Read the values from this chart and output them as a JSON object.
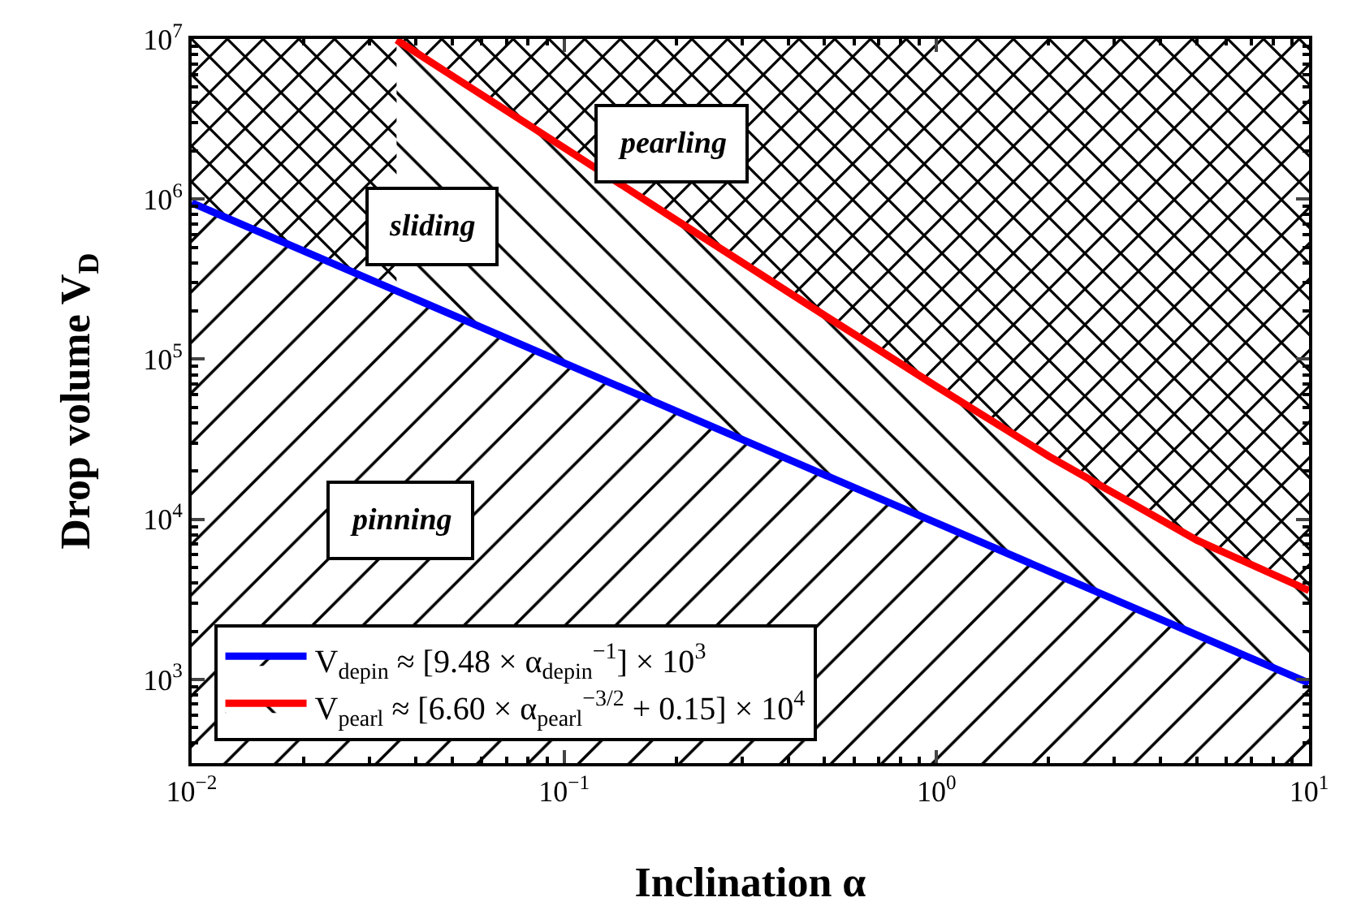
{
  "chart_data": {
    "xlabel": "Inclination α",
    "ylabel": "Drop volume V$_{D}$",
    "log": "xy",
    "grid": false,
    "legend": "bottom left",
    "marker": "none",
    "line_style": "solid",
    "xlim": [
      0.01,
      10
    ],
    "ylim": [
      300,
      10000000
    ],
    "xticks": [
      {
        "value": 0.01,
        "label": "10$^{−2}$"
      },
      {
        "value": 0.1,
        "label": "10$^{−1}$"
      },
      {
        "value": 1,
        "label": "10$^{0}$"
      },
      {
        "value": 10,
        "label": "10$^{1}$"
      }
    ],
    "yticks": [
      {
        "value": 1000,
        "label": "10$^{3}$"
      },
      {
        "value": 10000,
        "label": "10$^{4}$"
      },
      {
        "value": 100000,
        "label": "10$^{5}$"
      },
      {
        "value": 1000000,
        "label": "10$^{6}$"
      },
      {
        "value": 10000000,
        "label": "10$^{7}$"
      }
    ],
    "type": "area",
    "series": [
      {
        "name": "V$_{depin}$ ≈ [9.48 × α$_{depin}$$^{−1}$] × 10$^{3}$",
        "color": "#0000ff",
        "x": [
          0.01,
          0.1,
          1,
          10
        ],
        "values": [
          948000,
          94800,
          9480,
          948
        ]
      },
      {
        "name": "V$_{pearl}$ ≈ [6.60 × α$_{pearl}$$^{−3/2}$ + 0.15] × 10$^{4}$",
        "color": "#ff0000",
        "x": [
          0.0355,
          0.05,
          0.1,
          0.2,
          0.5,
          1,
          2,
          5,
          10
        ],
        "values": [
          9870000,
          5900000,
          2090000,
          739000,
          188000,
          67500,
          24800,
          7400,
          3590
        ]
      }
    ],
    "annotations": [
      "pinning",
      "sliding",
      "pearling"
    ]
  }
}
